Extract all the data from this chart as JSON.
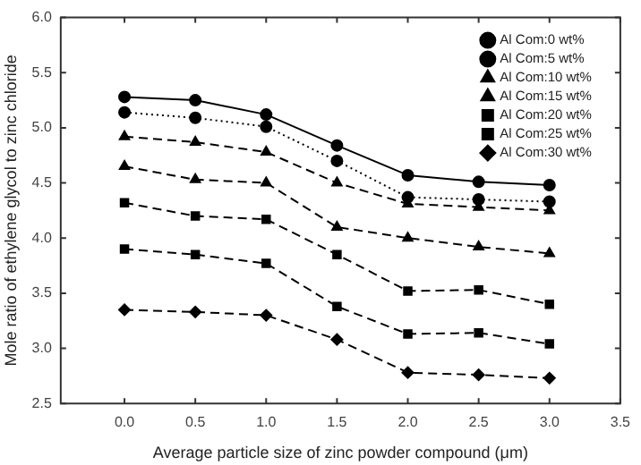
{
  "chart_data": {
    "type": "line",
    "xlabel": "Average particle size of zinc powder compound (μm)",
    "ylabel": "Mole ratio of ethylene glycol to zinc chloride",
    "x": [
      0,
      0.5,
      1.0,
      1.5,
      2.0,
      2.5,
      3.0
    ],
    "xlim": [
      -0.45,
      3.5
    ],
    "xticks": [
      {
        "value": 0,
        "label": "0.0"
      },
      {
        "value": 0.5,
        "label": "0.5"
      },
      {
        "value": 1,
        "label": "1.0"
      },
      {
        "value": 1.5,
        "label": "1.5"
      },
      {
        "value": 2,
        "label": "2.0"
      },
      {
        "value": 2.5,
        "label": "2.5"
      },
      {
        "value": 3,
        "label": "3.0"
      },
      {
        "value": 3.5,
        "label": "3.5"
      }
    ],
    "ylim": [
      2.5,
      6.0
    ],
    "yticks": [
      {
        "value": 2.5,
        "label": "2.5"
      },
      {
        "value": 3,
        "label": "3.0"
      },
      {
        "value": 3.5,
        "label": "3.5"
      },
      {
        "value": 4,
        "label": "4.0"
      },
      {
        "value": 4.5,
        "label": "4.5"
      },
      {
        "value": 5,
        "label": "5.0"
      },
      {
        "value": 5.5,
        "label": "5.5"
      },
      {
        "value": 6,
        "label": "6.0"
      }
    ],
    "grid": false,
    "legend": "top right",
    "series": [
      {
        "name": "Al Com:0 wt%",
        "color": "#000000",
        "marker": "circle",
        "line_style": "solid",
        "values": [
          5.28,
          5.25,
          5.12,
          4.84,
          4.57,
          4.51,
          4.48
        ]
      },
      {
        "name": "Al Com:5 wt%",
        "color": "#000000",
        "marker": "circle",
        "line_style": "dotted",
        "values": [
          5.14,
          5.09,
          5.01,
          4.7,
          4.37,
          4.35,
          4.33
        ]
      },
      {
        "name": "Al Com:10 wt%",
        "color": "#000000",
        "marker": "triangle",
        "line_style": "dashed",
        "values": [
          4.92,
          4.87,
          4.78,
          4.5,
          4.31,
          4.28,
          4.25
        ]
      },
      {
        "name": "Al Com:15 wt%",
        "color": "#000000",
        "marker": "triangle",
        "line_style": "dashed",
        "values": [
          4.65,
          4.53,
          4.5,
          4.1,
          4.0,
          3.92,
          3.86
        ]
      },
      {
        "name": "Al Com:20 wt%",
        "color": "#000000",
        "marker": "square",
        "line_style": "dashed",
        "values": [
          4.32,
          4.2,
          4.17,
          3.85,
          3.52,
          3.53,
          3.4
        ]
      },
      {
        "name": "Al Com:25 wt%",
        "color": "#000000",
        "marker": "square",
        "line_style": "dashed",
        "values": [
          3.9,
          3.85,
          3.77,
          3.38,
          3.13,
          3.14,
          3.04
        ]
      },
      {
        "name": "Al Com:30 wt%",
        "color": "#000000",
        "marker": "diamond",
        "line_style": "dashed",
        "values": [
          3.35,
          3.33,
          3.3,
          3.08,
          2.78,
          2.76,
          2.73
        ]
      }
    ]
  }
}
